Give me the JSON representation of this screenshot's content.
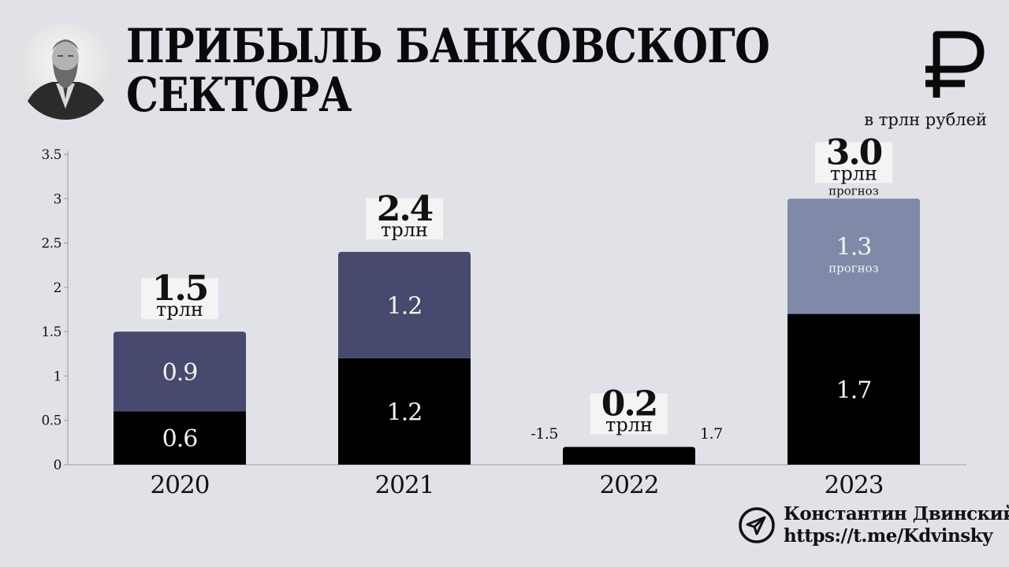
{
  "header": {
    "title_line1": "ПРИБЫЛЬ БАНКОВСКОГО",
    "title_line2": "СЕКТОРА",
    "units": "в трлн рублей",
    "icons": {
      "portrait": "portrait-photo",
      "currency": "ruble-icon"
    }
  },
  "author": {
    "name": "Константин Двинский",
    "link": "https://t.me/Kdvinsky",
    "icon": "telegram-icon"
  },
  "colors": {
    "background": "#e1e2e7",
    "lower_segment": "#000000",
    "upper_segment": "#474a6e",
    "forecast_segment": "#8089a8",
    "label_box": "#f4f4f4"
  },
  "chart_data": {
    "type": "bar",
    "stacked": true,
    "categories": [
      "2020",
      "2021",
      "2022",
      "2023"
    ],
    "ylim": [
      0,
      3.5
    ],
    "yticks": [
      0,
      0.5,
      1,
      1.5,
      2,
      2.5,
      3,
      3.5
    ],
    "ytick_labels": [
      "0",
      "0.5",
      "1",
      "1.5",
      "2",
      "2.5",
      "3",
      "3.5"
    ],
    "grid": false,
    "xlabel": "",
    "ylabel": "",
    "series": [
      {
        "key": "lower",
        "color": "#000000",
        "values": [
          0.6,
          1.2,
          0.2,
          1.7
        ],
        "labels": [
          "0.6",
          "1.2",
          null,
          "1.7"
        ]
      },
      {
        "key": "upper",
        "color": "#474a6e",
        "values": [
          0.9,
          1.2,
          0,
          0
        ],
        "labels": [
          "0.9",
          "1.2",
          null,
          null
        ]
      },
      {
        "key": "forecast",
        "color": "#8089a8",
        "values": [
          0,
          0,
          0,
          1.3
        ],
        "labels": [
          null,
          null,
          null,
          "1.3"
        ],
        "sublabel": "прогноз"
      }
    ],
    "totals": [
      {
        "value": "1.5",
        "unit": "трлн"
      },
      {
        "value": "2.4",
        "unit": "трлн"
      },
      {
        "value": "0.2",
        "unit": "трлн"
      },
      {
        "value": "3.0",
        "unit": "трлн",
        "note": "прогноз"
      }
    ],
    "annotations": [
      {
        "category": "2022",
        "side": "left",
        "text": "-1.5"
      },
      {
        "category": "2022",
        "side": "right",
        "text": "1.7"
      }
    ]
  }
}
